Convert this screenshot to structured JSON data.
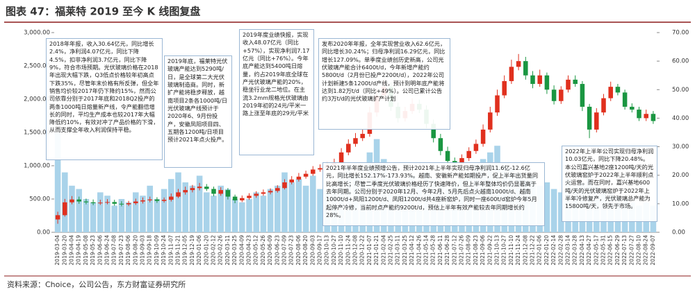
{
  "chart_data": {
    "type": "candlestick",
    "title": "图表 47：福莱特 2019 至今 K 线图复盘",
    "source": "资料来源：Choice，公司公告，东方财富证券研究所",
    "categories": [
      "2019-03-04",
      "2019-03-20",
      "2019-04-04",
      "2019-04-19",
      "2019-05-08",
      "2019-05-23",
      "2019-06-06",
      "2019-06-24",
      "2019-07-08",
      "2019-07-23",
      "2019-08-06",
      "2019-08-20",
      "2019-09-03",
      "2019-09-18",
      "2019-10-09",
      "2019-10-24",
      "2019-11-07",
      "2019-11-21",
      "2019-12-05",
      "2019-12-19",
      "2020-01-06",
      "2020-01-20",
      "2020-02-12",
      "2020-02-26",
      "2020-03-11",
      "2020-03-25",
      "2020-04-09",
      "2020-04-23",
      "2020-05-12",
      "2020-05-26",
      "2020-06-09",
      "2020-06-23",
      "2020-07-09",
      "2020-07-23",
      "2020-08-06",
      "2020-08-20",
      "2020-09-03",
      "2020-09-17",
      "2020-10-13",
      "2020-10-27",
      "2020-11-10",
      "2020-11-24",
      "2020-12-08",
      "2020-12-22",
      "2021-01-07",
      "2021-01-21",
      "2021-02-04",
      "2021-02-25",
      "2021-03-11",
      "2021-03-25",
      "2021-04-12",
      "2021-04-26",
      "2021-05-14",
      "2021-05-28",
      "2021-06-11",
      "2021-06-28",
      "2021-07-12",
      "2021-07-26",
      "2021-08-09",
      "2021-08-23",
      "2021-09-06",
      "2021-09-22",
      "2021-10-13",
      "2021-10-27",
      "2021-11-10",
      "2021-11-24",
      "2021-12-08",
      "2021-12-22",
      "2022-01-06",
      "2022-01-20",
      "2022-02-14",
      "2022-02-28",
      "2022-03-14",
      "2022-03-28",
      "2022-04-13",
      "2022-04-27",
      "2022-05-17",
      "2022-05-31",
      "2022-06-15",
      "2022-06-29",
      "2022-07-13",
      "2022-07-27",
      "2022-08-10",
      "2022-08-24",
      "2022-09-07"
    ],
    "candles": {
      "axis": "y2",
      "up_color": "#e0301e",
      "down_color": "#1a9641",
      "open": [
        4.5,
        6,
        10.5,
        11.5,
        10.8,
        10.5,
        10.2,
        10.4,
        10.6,
        10.0,
        9.8,
        10.2,
        10.8,
        11.2,
        11.5,
        11.0,
        11.4,
        12.5,
        14.0,
        14.8,
        15.5,
        16.0,
        15.2,
        13.5,
        14.8,
        12.5,
        11.2,
        12.0,
        12.8,
        13.5,
        14.0,
        14.5,
        15.5,
        17.5,
        18.5,
        19.5,
        20.5,
        22.0,
        22.5,
        23.5,
        24.5,
        28.0,
        31.0,
        33.0,
        34.5,
        42.0,
        48.0,
        51.0,
        44.0,
        40.0,
        42.5,
        45.0,
        43.0,
        38.0,
        33.0,
        28.5,
        25.0,
        24.0,
        26.0,
        28.5,
        31.0,
        36.0,
        42.0,
        48.0,
        53.0,
        58.0,
        60.0,
        55.0,
        52.0,
        55.0,
        50.0,
        46.0,
        50.0,
        53.5,
        52.0,
        44.0,
        36.0,
        42.0,
        47.0,
        51.0,
        49.0,
        44.0,
        43.0,
        40.0,
        41.5
      ],
      "high": [
        7.2,
        11.7,
        12.7,
        12.5,
        11.8,
        11.5,
        11.4,
        11.6,
        11.4,
        10.9,
        11.0,
        11.8,
        12.2,
        12.5,
        12.3,
        12.2,
        13.6,
        15.2,
        16.0,
        16.6,
        17.3,
        16.9,
        16.0,
        15.8,
        15.5,
        13.2,
        12.9,
        13.7,
        14.4,
        15.0,
        15.4,
        16.5,
        18.6,
        19.7,
        20.8,
        21.6,
        23.2,
        23.8,
        24.6,
        25.8,
        29.5,
        32.6,
        34.8,
        36.0,
        44.0,
        50.5,
        53.5,
        52.5,
        45.5,
        44.0,
        47.0,
        46.5,
        44.5,
        39.5,
        34.5,
        30.0,
        26.2,
        27.3,
        29.8,
        32.5,
        37.8,
        44.0,
        50.0,
        55.0,
        60.5,
        62.5,
        61.5,
        56.5,
        57.0,
        56.0,
        51.5,
        51.2,
        55.0,
        55.0,
        53.0,
        45.0,
        43.5,
        48.5,
        52.8,
        52.0,
        50.0,
        45.2,
        44.0,
        43.0,
        42.5
      ],
      "low": [
        3.0,
        5.5,
        9.8,
        10.0,
        9.8,
        9.5,
        9.6,
        9.8,
        9.3,
        9.1,
        9.2,
        9.6,
        10.1,
        10.5,
        10.3,
        10.4,
        10.8,
        12.0,
        13.2,
        14.0,
        14.7,
        14.5,
        12.6,
        12.8,
        11.5,
        10.2,
        10.6,
        11.4,
        12.1,
        12.8,
        13.3,
        13.9,
        15.0,
        16.8,
        17.8,
        18.8,
        19.8,
        21.2,
        21.8,
        22.7,
        23.8,
        27.0,
        30.0,
        32.0,
        33.5,
        40.5,
        46.5,
        42.5,
        38.5,
        38.8,
        41.5,
        41.8,
        36.5,
        31.5,
        27.0,
        23.8,
        22.8,
        23.0,
        25.0,
        27.5,
        30.0,
        35.0,
        40.8,
        47.0,
        52.0,
        56.8,
        53.5,
        50.5,
        51.0,
        48.5,
        44.8,
        45.0,
        49.0,
        51.0,
        42.5,
        33.0,
        35.0,
        41.0,
        46.0,
        48.0,
        43.0,
        42.0,
        39.0,
        39.0,
        38.0
      ],
      "close": [
        6,
        10.5,
        11.5,
        10.8,
        10.5,
        10.2,
        10.4,
        10.6,
        10.0,
        9.8,
        10.2,
        10.8,
        11.2,
        11.5,
        11.0,
        11.4,
        12.5,
        14.0,
        14.8,
        15.5,
        16.0,
        15.2,
        13.5,
        14.8,
        12.5,
        11.2,
        12.0,
        12.8,
        13.5,
        14.0,
        14.5,
        15.5,
        17.5,
        18.5,
        19.5,
        20.5,
        22.0,
        22.5,
        23.5,
        24.5,
        28.0,
        31.0,
        33.0,
        34.5,
        42.0,
        48.0,
        51.0,
        44.0,
        40.0,
        42.5,
        45.0,
        43.0,
        38.0,
        33.0,
        28.5,
        25.0,
        24.0,
        26.0,
        28.5,
        31.0,
        36.0,
        42.0,
        48.0,
        53.0,
        58.0,
        60.0,
        55.0,
        52.0,
        55.0,
        50.0,
        46.0,
        50.0,
        53.5,
        52.0,
        44.0,
        36.0,
        42.0,
        47.0,
        51.0,
        49.0,
        44.0,
        43.0,
        40.0,
        41.5,
        39.0
      ]
    },
    "volume": {
      "color": "#a9d3ea",
      "values": [
        1500,
        900,
        700,
        650,
        500,
        450,
        600,
        550,
        400,
        500,
        450,
        600,
        550,
        700,
        500,
        650,
        800,
        900,
        750,
        700,
        850,
        600,
        550,
        700,
        650,
        500,
        450,
        500,
        600,
        550,
        650,
        700,
        900,
        750,
        800,
        700,
        850,
        650,
        600,
        700,
        900,
        1000,
        850,
        950,
        1200,
        1400,
        1100,
        900,
        800,
        700,
        850,
        750,
        900,
        800,
        700,
        650,
        750,
        800,
        900,
        1000,
        1100,
        1200,
        1300,
        1000,
        950,
        900,
        800,
        850,
        700,
        750,
        650,
        600,
        800,
        700,
        750,
        900,
        700,
        650,
        600,
        550,
        500,
        450,
        400,
        450,
        400
      ]
    },
    "ylim": [
      0,
      3000
    ],
    "yticks": [
      {
        "value": 0,
        "label": "0.00"
      },
      {
        "value": 500,
        "label": "500.00"
      },
      {
        "value": 1000,
        "label": "1,000.00"
      },
      {
        "value": 1500,
        "label": "1,500.00"
      },
      {
        "value": 2000,
        "label": "2,000.00"
      },
      {
        "value": 2500,
        "label": "2,500.00"
      },
      {
        "value": 3000,
        "label": "3,000.00"
      }
    ],
    "y2lim": [
      0,
      70
    ],
    "y2ticks": [
      {
        "value": 0,
        "label": "0.00"
      },
      {
        "value": 10,
        "label": "10.00"
      },
      {
        "value": 20,
        "label": "20.00"
      },
      {
        "value": 30,
        "label": "30.00"
      },
      {
        "value": 40,
        "label": "40.00"
      },
      {
        "value": 50,
        "label": "50.00"
      },
      {
        "value": 60,
        "label": "60.00"
      },
      {
        "value": 70,
        "label": "70.00"
      }
    ],
    "annotations": [
      "2018年年报，收入30.64亿元，同比增长2.4%，净利润4.07亿元，同比下降4.5%，扣非净利润3.7亿元，同比下降9%，符合市场预期。光伏玻璃价格在2018年出现大幅下跌，Q3低点价格较年初高点下跌35%，尽管年末价格有所反弹，但全年销售均价较2017年仍下降约15%，然而公司依靠分别于2017年底和2018Q2投产的两条1000吨日熔量新产线，令产能翻倍增长的同时，平均生产成本也较2017年大幅降低约10%，有效对冲了产品价格的下滑，从而支撑全年收入利润保持平稳。",
      "2019年底，福莱特光伏玻璃产能达到5290吨/日，是全球第二大光伏玻璃制造商。同时，新扩产能将稳步释放，越南项目2条各1000吨/日光伏玻璃产线预计于2020年6、9月份投产，安徽凤阳项目四、五期各1200吨/日项目预计2021年点火投产。",
      "2019年度业绩快报，实现收入48.07亿元（同比+57%），实现净利润7.17亿元（同比+76%）。今年底产能达到5400吨日熔量，约占2019年底全球在产光伏玻璃产能的20%，稳坐行业龙二地位。在主流3.2mm规格光伏玻璃由2019年初的24元/平米一路上涨至年底的29元/平米",
      "发布2020年年报，全年实现营业收入62.6亿元，同比增长30.24%；归母净利润16.29亿元，同比增长127.09%。单季度业绩创历史新高，公司光伏玻璃产能合计6400t/d，今年新增产能约5800t/d（2月份已投产2200t/d），2022年公司计划新建5条1200t/d产线，预计到明年底产能将达到1.82万t/d（同比+49%）。公司已累计公告约3万t/d的光伏玻璃扩产计划",
      "2021年半年度业绩预增公告，预计2021年上半年实现归母净利润11.6亿-12.6亿元，同比增长152.17%-173.93%。越南、安徽新产能如期投产，促上半年出货量同比高增长；尽管二季度光伏玻璃价格经历了快速降价，但上半年整体均价仍显著高于去年同期。公司分别于2020年12月、今年2月、5月先后点火越南1000t/d、越南1000t/d+凤阳1200t/d、凤阳1200t/d共4座新窑炉，同时一座600t/d窑炉今年5月起停产冷修，当前时点产能约9200t/d，预估上半年有效产能较去年同期增长约28%。",
      "2022年上半年公司实现归母净利润10.03亿元，同比下降20.48%。本公司嘉兴基地2座1200吨/天的光伏玻璃窑炉于2022年上半年顺利点火运营。而在同时，嘉兴基地600吨/天的光伏玻璃窑炉于2022年上半年冷修复产，光伏玻璃总产能为15800吨/天，领先于市场。"
    ]
  }
}
